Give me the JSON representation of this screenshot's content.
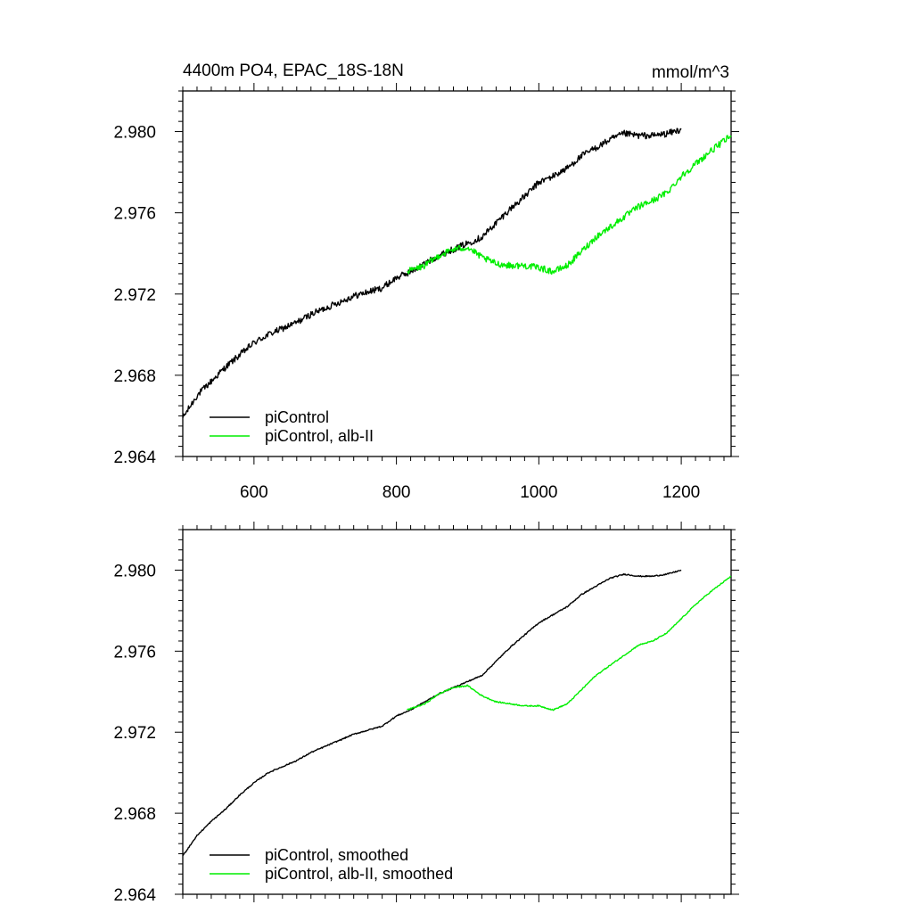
{
  "figure": {
    "title": "4400m PO4, EPAC_18S-18N",
    "units": "mmol/m^3"
  },
  "chart_data": [
    {
      "type": "line",
      "panel": "top",
      "title": "4400m PO4, EPAC_18S-18N",
      "units_label": "mmol/m^3",
      "xlabel": "",
      "ylabel": "",
      "xlim": [
        500,
        1270
      ],
      "ylim": [
        2.964,
        2.982
      ],
      "x_ticks": [
        600,
        800,
        1000,
        1200
      ],
      "x_tick_labels": [
        "600",
        "800",
        "1000",
        "1200"
      ],
      "y_ticks": [
        2.964,
        2.968,
        2.972,
        2.976,
        2.98
      ],
      "y_tick_labels": [
        "2.964",
        "2.968",
        "2.972",
        "2.976",
        "2.980"
      ],
      "legend_position": "bottom-left",
      "noise": 0.00016,
      "series": [
        {
          "name": "piControl",
          "color": "#000000",
          "x": [
            500,
            520,
            540,
            560,
            580,
            600,
            620,
            640,
            660,
            680,
            700,
            720,
            740,
            760,
            780,
            800,
            820,
            840,
            860,
            880,
            900,
            920,
            940,
            960,
            980,
            1000,
            1020,
            1040,
            1060,
            1080,
            1100,
            1120,
            1140,
            1160,
            1180,
            1200
          ],
          "y": [
            2.9659,
            2.967,
            2.9677,
            2.9684,
            2.969,
            2.9696,
            2.97,
            2.9703,
            2.9706,
            2.971,
            2.9713,
            2.9716,
            2.9719,
            2.9721,
            2.9723,
            2.9728,
            2.9731,
            2.9735,
            2.9739,
            2.9742,
            2.9745,
            2.9748,
            2.9755,
            2.9762,
            2.9768,
            2.9775,
            2.9778,
            2.9782,
            2.9788,
            2.9792,
            2.9796,
            2.9799,
            2.9798,
            2.9798,
            2.9799,
            2.9801
          ]
        },
        {
          "name": "piControl, alb-II",
          "color": "#00ee00",
          "x": [
            815,
            840,
            860,
            880,
            900,
            920,
            940,
            960,
            980,
            1000,
            1020,
            1040,
            1060,
            1080,
            1100,
            1120,
            1140,
            1160,
            1180,
            1200,
            1220,
            1240,
            1270
          ],
          "y": [
            2.9731,
            2.9734,
            2.9739,
            2.9742,
            2.9743,
            2.9738,
            2.9735,
            2.9734,
            2.9734,
            2.9733,
            2.9731,
            2.9734,
            2.9741,
            2.9748,
            2.9753,
            2.9758,
            2.9763,
            2.9766,
            2.977,
            2.9778,
            2.9784,
            2.979,
            2.9798
          ]
        }
      ]
    },
    {
      "type": "line",
      "panel": "bottom",
      "xlabel": "",
      "ylabel": "",
      "xlim": [
        500,
        1270
      ],
      "ylim": [
        2.964,
        2.982
      ],
      "x_ticks": [
        600,
        800,
        1000,
        1200
      ],
      "x_tick_labels": [],
      "y_ticks": [
        2.964,
        2.968,
        2.972,
        2.976,
        2.98
      ],
      "y_tick_labels": [
        "2.964",
        "2.968",
        "2.972",
        "2.976",
        "2.980"
      ],
      "legend_position": "bottom-left",
      "noise": 3e-05,
      "series": [
        {
          "name": "piControl, smoothed",
          "color": "#000000",
          "x": [
            500,
            520,
            540,
            560,
            580,
            600,
            620,
            640,
            660,
            680,
            700,
            720,
            740,
            760,
            780,
            800,
            820,
            840,
            860,
            880,
            900,
            920,
            940,
            960,
            980,
            1000,
            1020,
            1040,
            1060,
            1080,
            1100,
            1120,
            1140,
            1160,
            1180,
            1200
          ],
          "y": [
            2.9659,
            2.9669,
            2.9676,
            2.9682,
            2.9689,
            2.9695,
            2.97,
            2.9703,
            2.9706,
            2.971,
            2.9713,
            2.9716,
            2.9719,
            2.9721,
            2.9723,
            2.9728,
            2.9731,
            2.9735,
            2.9739,
            2.9742,
            2.9745,
            2.9748,
            2.9755,
            2.9762,
            2.9768,
            2.9774,
            2.9778,
            2.9782,
            2.9788,
            2.9792,
            2.9796,
            2.9798,
            2.9797,
            2.9797,
            2.9798,
            2.98
          ]
        },
        {
          "name": "piControl, alb-II, smoothed",
          "color": "#00ee00",
          "x": [
            815,
            840,
            860,
            880,
            900,
            920,
            940,
            960,
            980,
            1000,
            1020,
            1040,
            1060,
            1080,
            1100,
            1120,
            1140,
            1160,
            1180,
            1200,
            1220,
            1240,
            1270
          ],
          "y": [
            2.9731,
            2.9734,
            2.9739,
            2.9742,
            2.9743,
            2.9738,
            2.9735,
            2.9734,
            2.9733,
            2.9733,
            2.9731,
            2.9734,
            2.9741,
            2.9748,
            2.9753,
            2.9758,
            2.9763,
            2.9765,
            2.9769,
            2.9776,
            2.9783,
            2.9789,
            2.9797
          ]
        }
      ]
    }
  ]
}
